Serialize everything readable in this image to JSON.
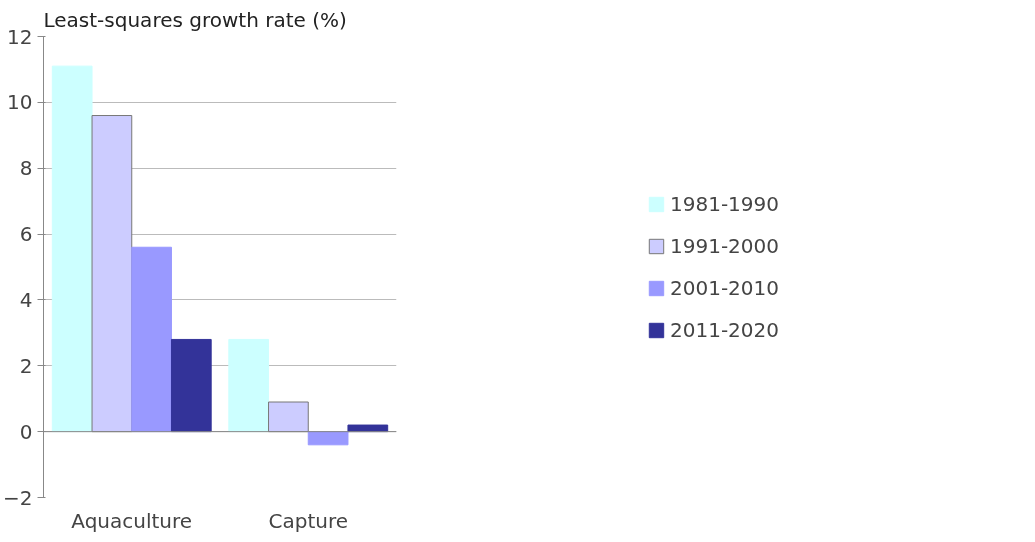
{
  "chart_data": {
    "type": "bar",
    "ylabel": "Least-squares growth rate (%)",
    "categories": [
      "Aquaculture",
      "Capture"
    ],
    "series": [
      {
        "name": "1981-1990",
        "color": "#ccffff",
        "values": [
          11.1,
          2.8
        ]
      },
      {
        "name": "1991-2000",
        "color": "#ccccff",
        "values": [
          9.6,
          0.9
        ]
      },
      {
        "name": "2001-2010",
        "color": "#9999ff",
        "values": [
          5.6,
          -0.4
        ]
      },
      {
        "name": "2011-2020",
        "color": "#333399",
        "values": [
          2.8,
          0.2
        ]
      }
    ],
    "ylim": [
      -2,
      12
    ],
    "yticks": [
      -2,
      0,
      2,
      4,
      6,
      8,
      10,
      12
    ],
    "grid": "y",
    "legend": "right"
  }
}
